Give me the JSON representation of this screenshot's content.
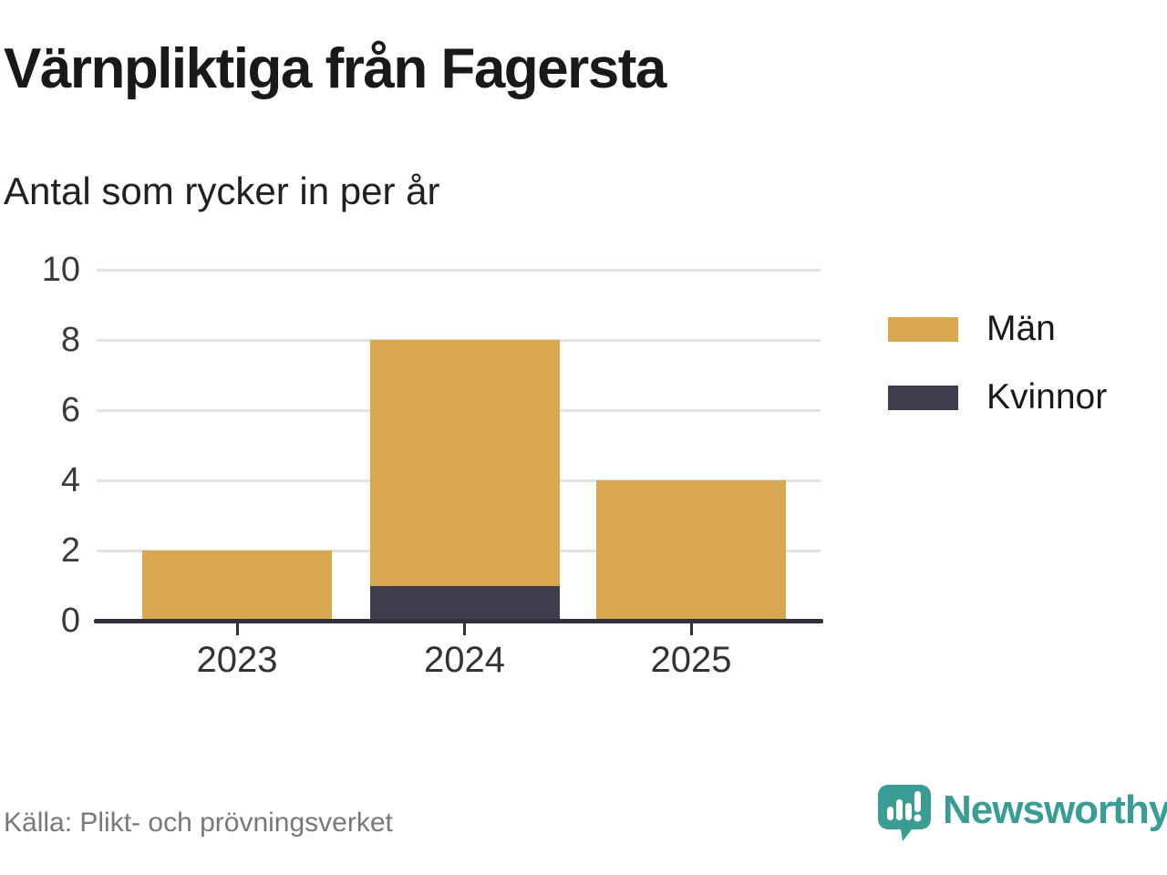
{
  "title": "Värnpliktiga från Fagersta",
  "subtitle": "Antal som rycker in per år",
  "source": "Källa: Plikt- och prövningsverket",
  "brand": {
    "name": "Newsworthy",
    "color": "#399d95"
  },
  "chart_data": {
    "type": "bar",
    "stacked": true,
    "title": "Värnpliktiga från Fagersta",
    "subtitle": "Antal som rycker in per år",
    "categories": [
      "2023",
      "2024",
      "2025"
    ],
    "series": [
      {
        "name": "Män",
        "color": "#d9a84e",
        "values": [
          2,
          7,
          4
        ]
      },
      {
        "name": "Kvinnor",
        "color": "#403d4c",
        "values": [
          0,
          1,
          0
        ]
      }
    ],
    "stack_bottom_to_top": [
      "Kvinnor",
      "Män"
    ],
    "totals": [
      2,
      8,
      4
    ],
    "xlabel": "",
    "ylabel": "",
    "ylim": [
      0,
      10
    ],
    "yticks": [
      0,
      2,
      4,
      6,
      8,
      10
    ],
    "grid": "horizontal",
    "legend_position": "right",
    "axis_color": "#34303b",
    "grid_color": "#e2e2e2"
  }
}
